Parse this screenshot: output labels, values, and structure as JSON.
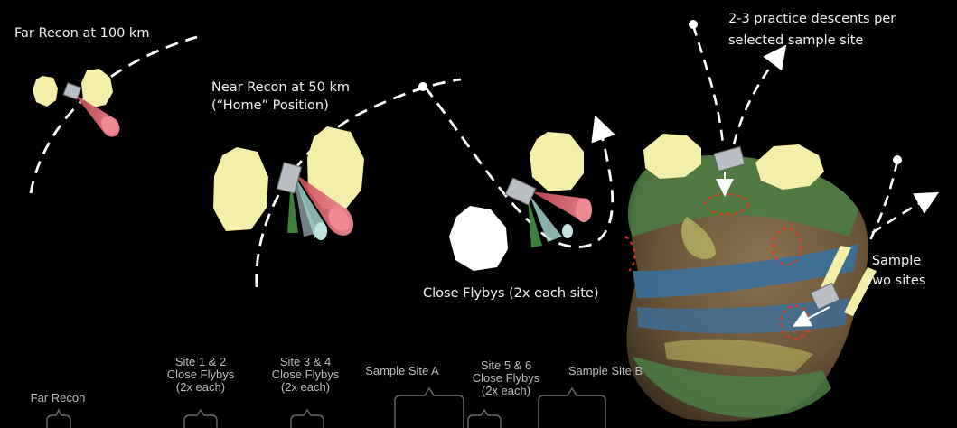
{
  "phases": {
    "far_recon": "Far Recon at 100 km",
    "near_recon_line1": "Near Recon at 50 km",
    "near_recon_line2": "(“Home” Position)",
    "close_flybys": "Close Flybys (2x each site)",
    "practice_line1": "2-3 practice descents per",
    "practice_line2": "selected sample site",
    "sample_line1": "Sample",
    "sample_line2": "two sites"
  },
  "timeline": {
    "far_recon": "Far Recon",
    "site_1_2": [
      "Site 1 & 2",
      "Close Flybys",
      "(2x each)"
    ],
    "site_3_4": [
      "Site 3 & 4",
      "Close Flybys",
      "(2x each)"
    ],
    "sample_a": "Sample Site A",
    "site_5_6": [
      "Site 5 & 6",
      "Close Flybys",
      "(2x each)"
    ],
    "sample_b": "Sample Site B"
  },
  "colors": {
    "background": "#000000",
    "text": "#f2f2f2",
    "timeline_text": "#bcbcbc",
    "trajectory": "#ffffff",
    "solar_panel": "#f3efa8",
    "sensor_cone_red": "#e8707a",
    "sample_site_marker": "#e03a1e",
    "asteroid_band_blue": "#3d6f98",
    "asteroid_green": "#4b7f44"
  }
}
